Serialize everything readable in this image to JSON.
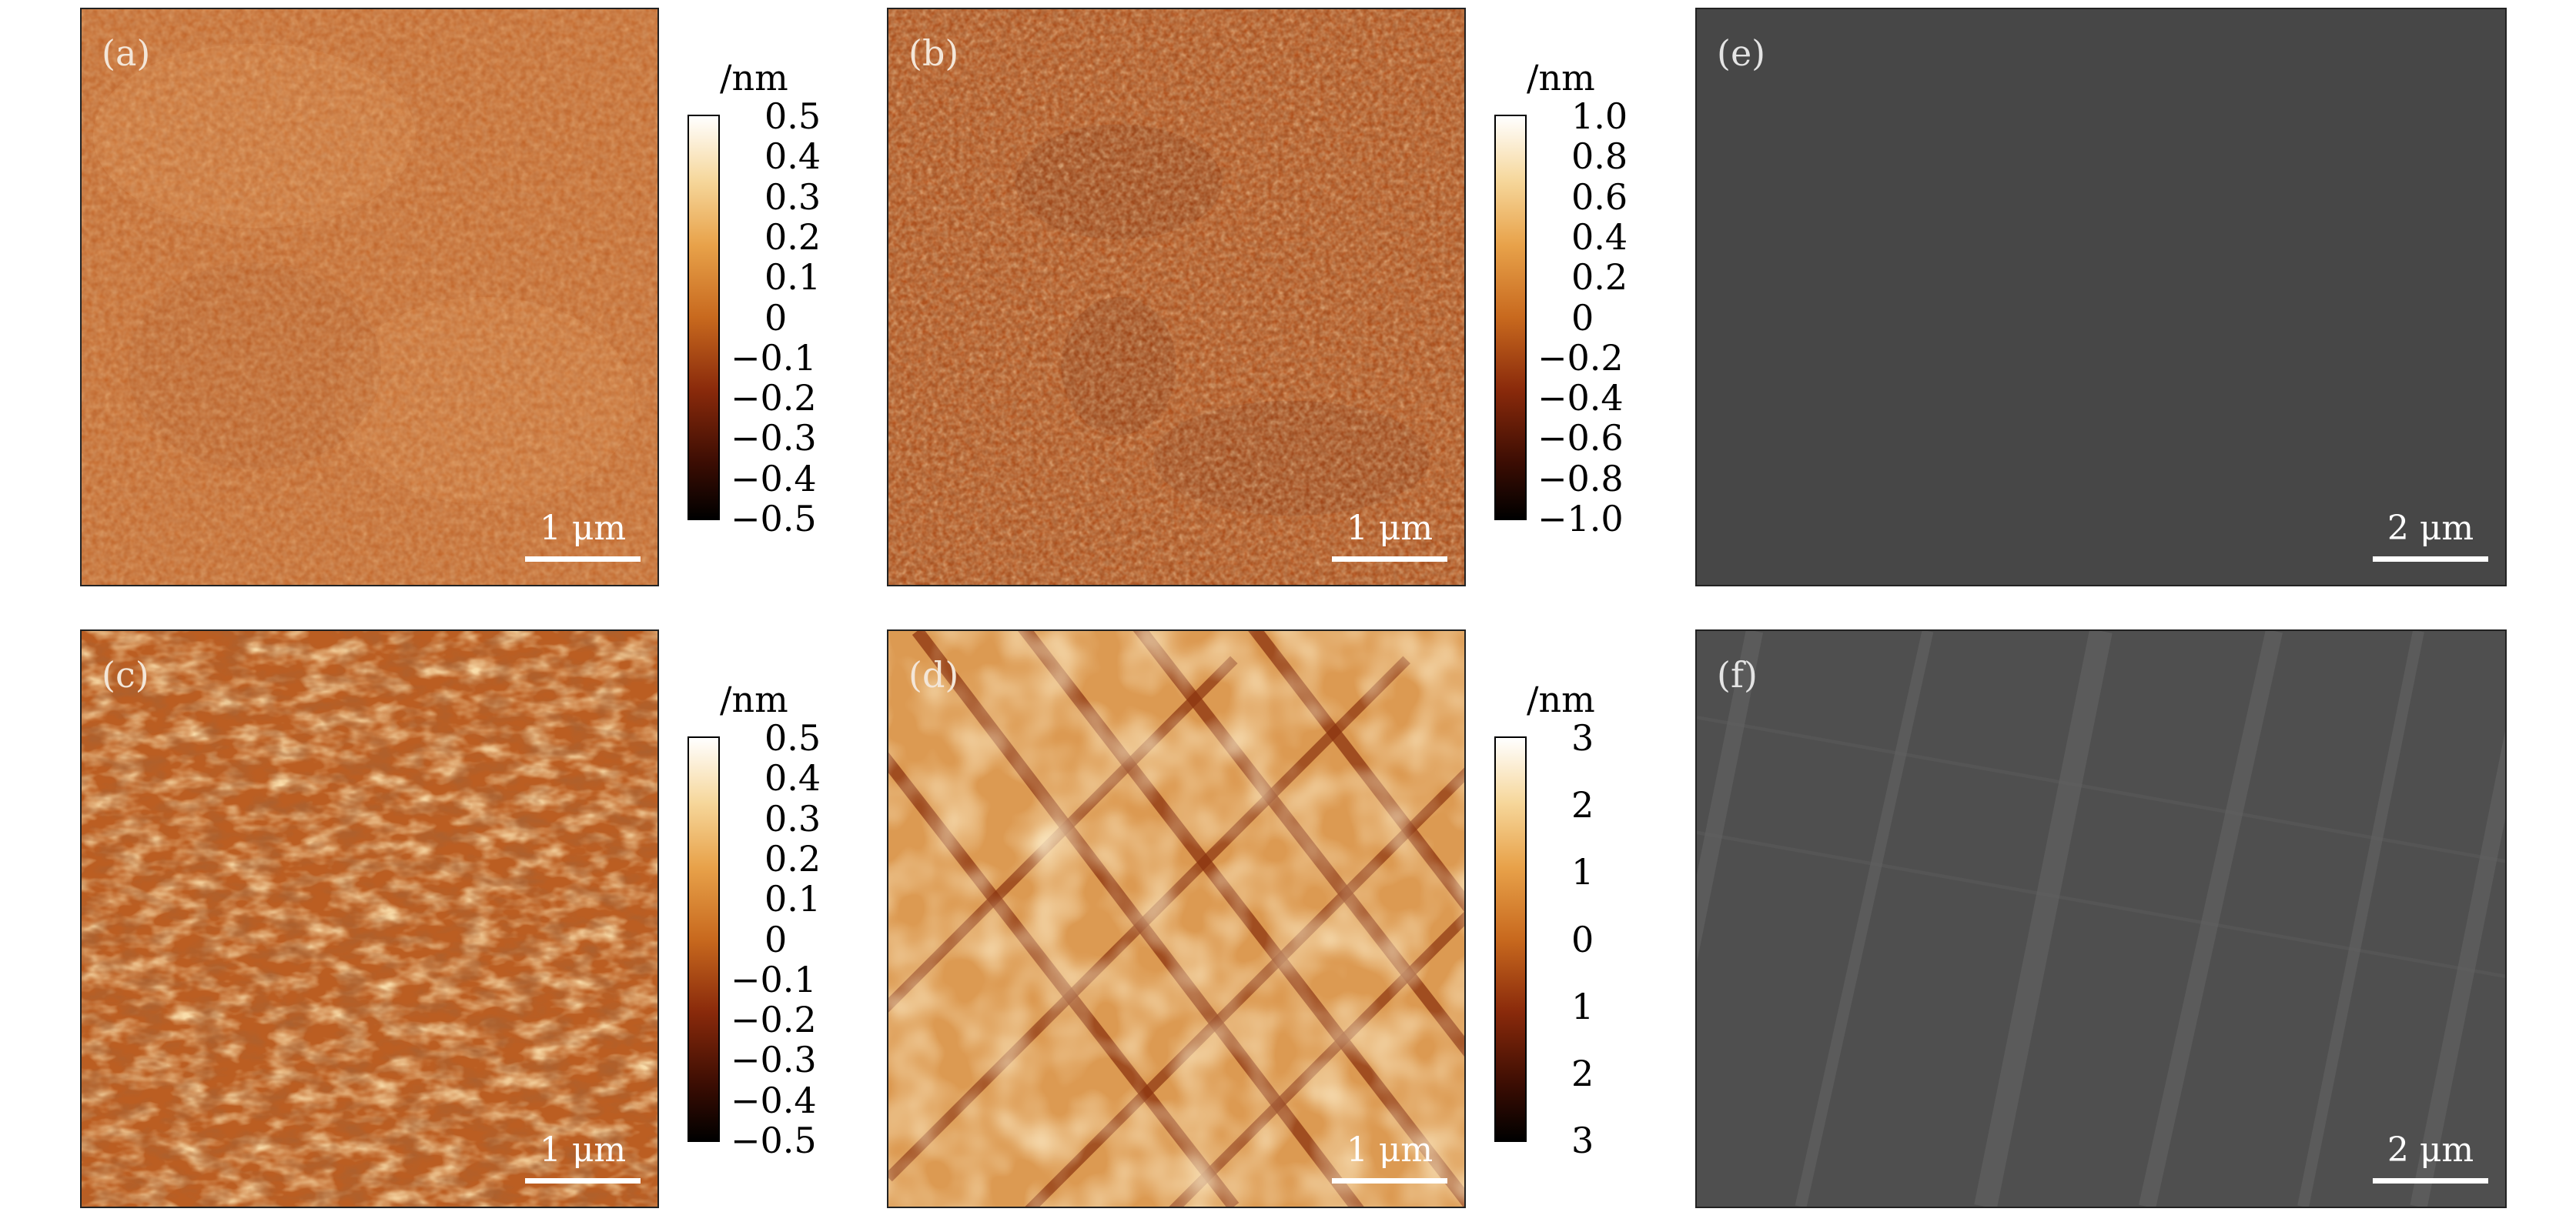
{
  "panels": [
    {
      "id": "a",
      "label": "(a)",
      "type": "afm",
      "scale_label": "1 μm",
      "tone": "#c56a2c"
    },
    {
      "id": "b",
      "label": "(b)",
      "type": "afm",
      "scale_label": "1 μm",
      "tone": "#b8561f"
    },
    {
      "id": "c",
      "label": "(c)",
      "type": "afm",
      "scale_label": "1 μm",
      "tone": "#bb5d22"
    },
    {
      "id": "d",
      "label": "(d)",
      "type": "afm",
      "scale_label": "1 μm",
      "tone": "#dc9a52"
    },
    {
      "id": "e",
      "label": "(e)",
      "type": "sem",
      "scale_label": "2 μm",
      "tone": "#474747"
    },
    {
      "id": "f",
      "label": "(f)",
      "type": "sem",
      "scale_label": "2 μm",
      "tone": "#505050"
    }
  ],
  "colorbars": [
    {
      "for": "a",
      "unit": "/nm",
      "ticks": [
        "0.5",
        "0.4",
        "0.3",
        "0.2",
        "0.1",
        "0",
        "−0.1",
        "−0.2",
        "−0.3",
        "−0.4",
        "−0.5"
      ]
    },
    {
      "for": "b",
      "unit": "/nm",
      "ticks": [
        "1.0",
        "0.8",
        "0.6",
        "0.4",
        "0.2",
        "0",
        "−0.2",
        "−0.4",
        "−0.6",
        "−0.8",
        "−1.0"
      ]
    },
    {
      "for": "c",
      "unit": "/nm",
      "ticks": [
        "0.5",
        "0.4",
        "0.3",
        "0.2",
        "0.1",
        "0",
        "−0.1",
        "−0.2",
        "−0.3",
        "−0.4",
        "−0.5"
      ]
    },
    {
      "for": "d",
      "unit": "/nm",
      "ticks": [
        "3",
        "2",
        "1",
        "0",
        "1",
        "2",
        "3"
      ]
    }
  ],
  "colormap": [
    "#000000",
    "#3c0d03",
    "#8a2a0b",
    "#c8691e",
    "#e8a24a",
    "#f6d79b",
    "#ffffff"
  ]
}
